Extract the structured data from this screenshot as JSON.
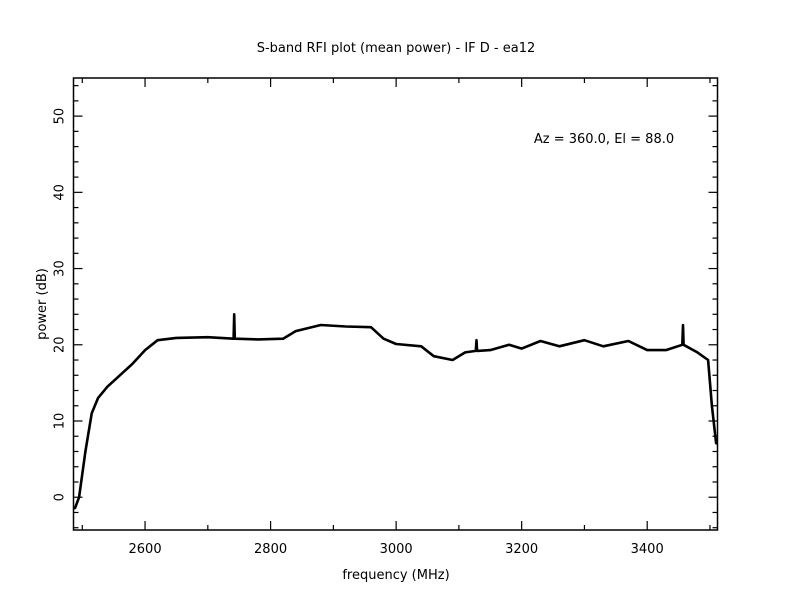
{
  "chart_data": {
    "type": "line",
    "title": "S-band RFI plot (mean power) - IF D - ea12",
    "annotation": "Az = 360.0, El = 88.0",
    "xlabel": "frequency (MHz)",
    "ylabel": "power (dB)",
    "xlim": [
      2486,
      3512
    ],
    "ylim": [
      -4.3,
      55
    ],
    "xticks": [
      2600,
      2800,
      3000,
      3200,
      3400
    ],
    "xminor_step": 100,
    "yticks": [
      0,
      10,
      20,
      30,
      40,
      50
    ],
    "yminor_step": 2,
    "grid": false,
    "series": [
      {
        "name": "mean power",
        "color": "#000000",
        "x": [
          2488,
          2495,
          2505,
          2515,
          2525,
          2540,
          2560,
          2580,
          2600,
          2620,
          2650,
          2700,
          2741,
          2742,
          2743,
          2780,
          2820,
          2840,
          2880,
          2920,
          2960,
          2980,
          3000,
          3040,
          3060,
          3090,
          3110,
          3127,
          3128,
          3129,
          3150,
          3180,
          3200,
          3230,
          3260,
          3300,
          3330,
          3370,
          3400,
          3430,
          3456,
          3457,
          3458,
          3480,
          3497,
          3503,
          3510
        ],
        "y": [
          -1.5,
          0,
          6,
          11,
          13,
          14.5,
          16,
          17.5,
          19.3,
          20.6,
          20.9,
          21,
          20.8,
          24,
          20.8,
          20.7,
          20.8,
          21.8,
          22.6,
          22.4,
          22.3,
          20.8,
          20.1,
          19.8,
          18.5,
          18.0,
          19,
          19.2,
          20.6,
          19.2,
          19.3,
          20.0,
          19.5,
          20.5,
          19.8,
          20.6,
          19.8,
          20.5,
          19.3,
          19.3,
          20,
          22.6,
          20,
          19,
          18.0,
          12,
          7
        ]
      }
    ]
  }
}
